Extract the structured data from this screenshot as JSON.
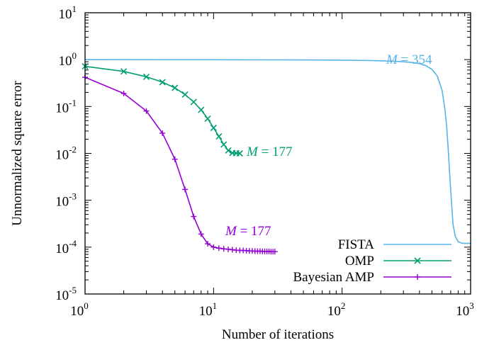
{
  "chart_data": {
    "type": "line",
    "title": "",
    "xlabel": "Number of iterations",
    "ylabel": "Unnormalized square error",
    "xscale": "log",
    "yscale": "log",
    "xlim": [
      1,
      1000
    ],
    "ylim": [
      1e-05,
      10
    ],
    "grid": false,
    "legend_position": "bottom-right",
    "x_ticks": [
      {
        "value": 1,
        "base": "10",
        "exp": "0"
      },
      {
        "value": 10,
        "base": "10",
        "exp": "1"
      },
      {
        "value": 100,
        "base": "10",
        "exp": "2"
      },
      {
        "value": 1000,
        "base": "10",
        "exp": "3"
      }
    ],
    "y_ticks": [
      {
        "value": 1e-05,
        "base": "10",
        "exp": "-5"
      },
      {
        "value": 0.0001,
        "base": "10",
        "exp": "-4"
      },
      {
        "value": 0.001,
        "base": "10",
        "exp": "-3"
      },
      {
        "value": 0.01,
        "base": "10",
        "exp": "-2"
      },
      {
        "value": 0.1,
        "base": "10",
        "exp": "-1"
      },
      {
        "value": 1,
        "base": "10",
        "exp": "0"
      },
      {
        "value": 10,
        "base": "10",
        "exp": "1"
      }
    ],
    "series": [
      {
        "name": "FISTA",
        "color": "#56b4e9",
        "marker": "none",
        "x": [
          1,
          10,
          50,
          100,
          150,
          200,
          250,
          300,
          350,
          400,
          450,
          500,
          550,
          600,
          630,
          650,
          670,
          690,
          710,
          730,
          760,
          800,
          850,
          900,
          950,
          1000
        ],
        "y": [
          1.0,
          0.995,
          0.985,
          0.975,
          0.96,
          0.945,
          0.925,
          0.9,
          0.87,
          0.82,
          0.74,
          0.62,
          0.45,
          0.22,
          0.09,
          0.04,
          0.012,
          0.003,
          0.0009,
          0.0003,
          0.00017,
          0.00013,
          0.000122,
          0.00012,
          0.00012,
          0.00012
        ],
        "annotation": {
          "text_italic": "M",
          "text_rest": " = 354",
          "x": 300,
          "y": 1.0
        }
      },
      {
        "name": "OMP",
        "color": "#009e73",
        "marker": "x",
        "x": [
          1,
          2,
          3,
          4,
          5,
          6,
          7,
          8,
          9,
          10,
          11,
          12,
          13,
          14,
          15,
          16
        ],
        "y": [
          0.72,
          0.56,
          0.43,
          0.33,
          0.25,
          0.18,
          0.125,
          0.085,
          0.055,
          0.035,
          0.023,
          0.0155,
          0.0115,
          0.0102,
          0.0101,
          0.01
        ],
        "annotation": {
          "text_italic": "M",
          "text_rest": " = 177",
          "x": 30,
          "y": 0.01
        }
      },
      {
        "name": "Bayesian AMP",
        "color": "#9400d3",
        "marker": "+",
        "x": [
          1,
          2,
          3,
          4,
          5,
          6,
          7,
          8,
          9,
          10,
          11,
          12,
          13,
          14,
          15,
          16,
          17,
          18,
          19,
          20,
          21,
          22,
          23,
          24,
          25,
          26,
          27,
          28,
          29,
          30
        ],
        "y": [
          0.42,
          0.19,
          0.08,
          0.027,
          0.0075,
          0.0017,
          0.00045,
          0.00019,
          0.000118,
          0.0001,
          9.5e-05,
          9.2e-05,
          9e-05,
          8.8e-05,
          8.6e-05,
          8.5e-05,
          8.5e-05,
          8.4e-05,
          8.3e-05,
          8.3e-05,
          8.2e-05,
          8.2e-05,
          8.2e-05,
          8.1e-05,
          8.1e-05,
          8.1e-05,
          8.1e-05,
          8e-05,
          8e-05,
          8e-05
        ],
        "annotation": {
          "text_italic": "M",
          "text_rest": " = 177",
          "x": 30,
          "y": 0.0001
        }
      }
    ]
  }
}
